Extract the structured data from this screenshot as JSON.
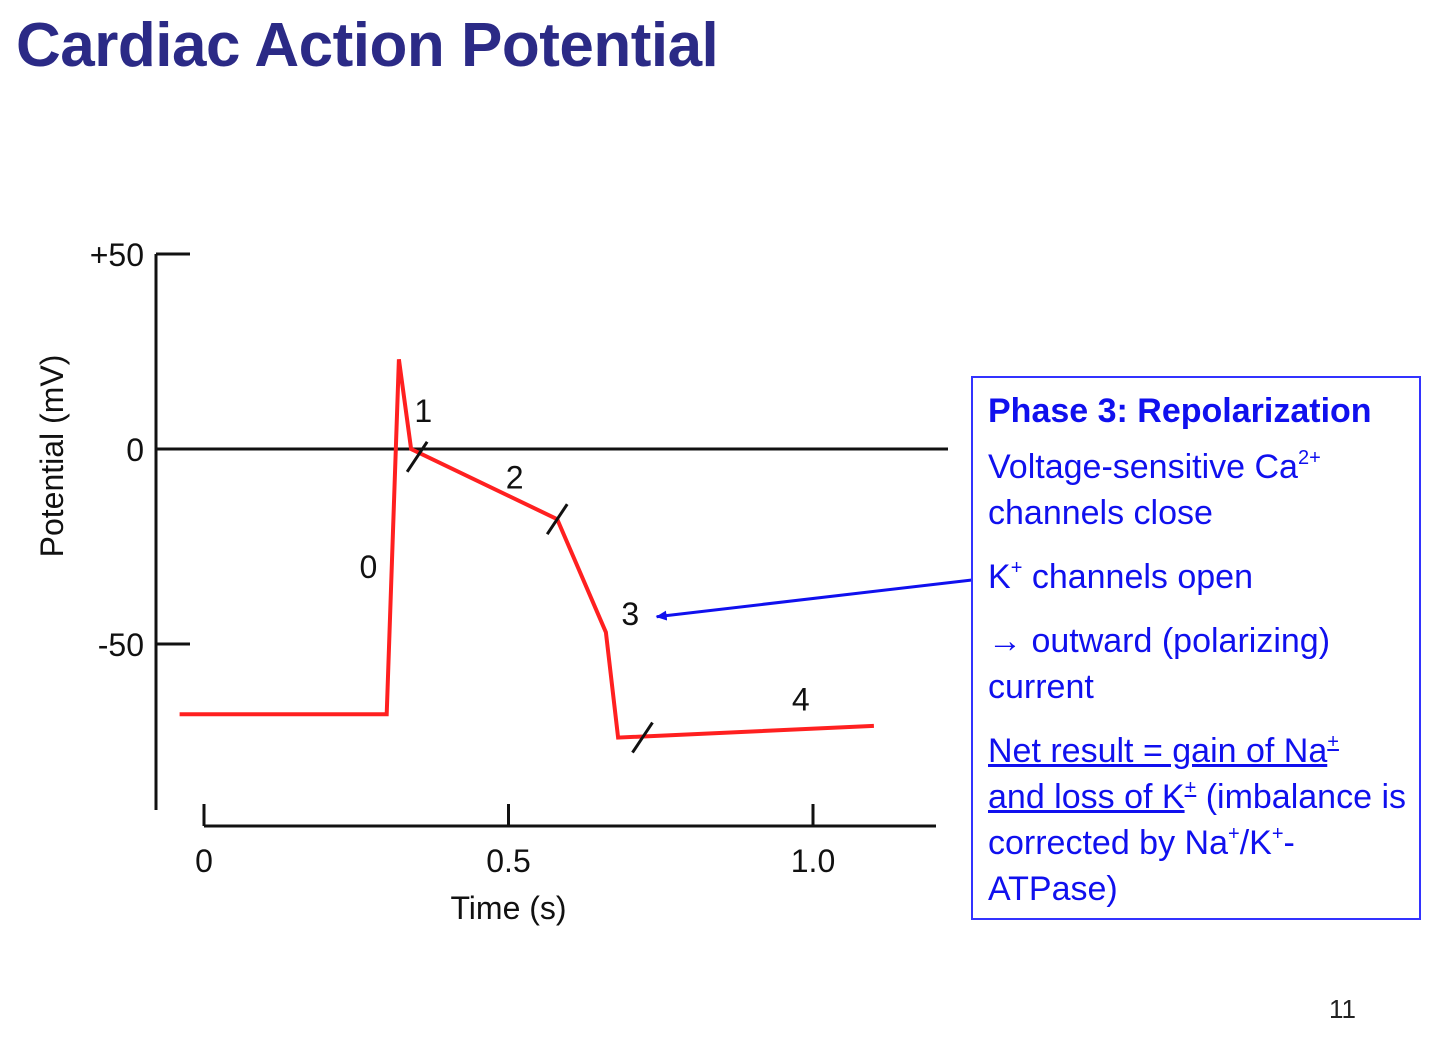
{
  "slide": {
    "title": "Cardiac Action Potential",
    "page_number": "11"
  },
  "colors": {
    "title": "#2b2a86",
    "trace": "#ff2020",
    "axes": "#111111",
    "callout": "#1010ee",
    "box_border": "#3333ff"
  },
  "chart_data": {
    "type": "line",
    "xlabel": "Time (s)",
    "ylabel": "Potential (mV)",
    "xlim": [
      -0.04,
      1.2
    ],
    "ylim": [
      -90,
      50
    ],
    "x_ticks": [
      {
        "value": 0,
        "label": "0"
      },
      {
        "value": 0.5,
        "label": "0.5"
      },
      {
        "value": 1.0,
        "label": "1.0"
      }
    ],
    "y_ticks": [
      {
        "value": 50,
        "label": "+50"
      },
      {
        "value": 0,
        "label": "0"
      },
      {
        "value": -50,
        "label": "-50"
      }
    ],
    "zero_line": true,
    "grid": false,
    "series": [
      {
        "x": [
          -0.04,
          0.3,
          0.32,
          0.34,
          0.58,
          0.66,
          0.68,
          1.1
        ],
        "y": [
          -68,
          -68,
          23,
          0,
          -18,
          -47,
          -74,
          -71
        ]
      }
    ],
    "phase_labels": [
      {
        "label": "0",
        "x": 0.27,
        "y": -30
      },
      {
        "label": "1",
        "x": 0.36,
        "y": 10
      },
      {
        "label": "2",
        "x": 0.51,
        "y": -7
      },
      {
        "label": "3",
        "x": 0.7,
        "y": -42
      },
      {
        "label": "4",
        "x": 0.98,
        "y": -64
      }
    ],
    "phase_boundaries": [
      {
        "x": 0.35,
        "y": -2
      },
      {
        "x": 0.58,
        "y": -18
      },
      {
        "x": 0.72,
        "y": -74
      }
    ],
    "arrow_target": {
      "x": 0.74,
      "y": -43
    }
  },
  "callout": {
    "heading": "Phase 3: Repolarization",
    "ca_text": "Voltage-sensitive Ca",
    "ca_sup": "2+",
    "ca_text2": "channels close",
    "k_text": "K",
    "k_sup": "+",
    "k_text2": " channels open",
    "current_arrow": "→",
    "current_text": " outward (polarizing) current",
    "net_part1": "Net result = gain of Na",
    "net_sup1": "+",
    "net_part2": "and loss of K",
    "net_sup2": "+",
    "net_part3": " (imbalance is corrected by Na",
    "net_sup3": "+",
    "net_part4": "/K",
    "net_sup4": "+",
    "net_part5": "-ATPase)"
  }
}
